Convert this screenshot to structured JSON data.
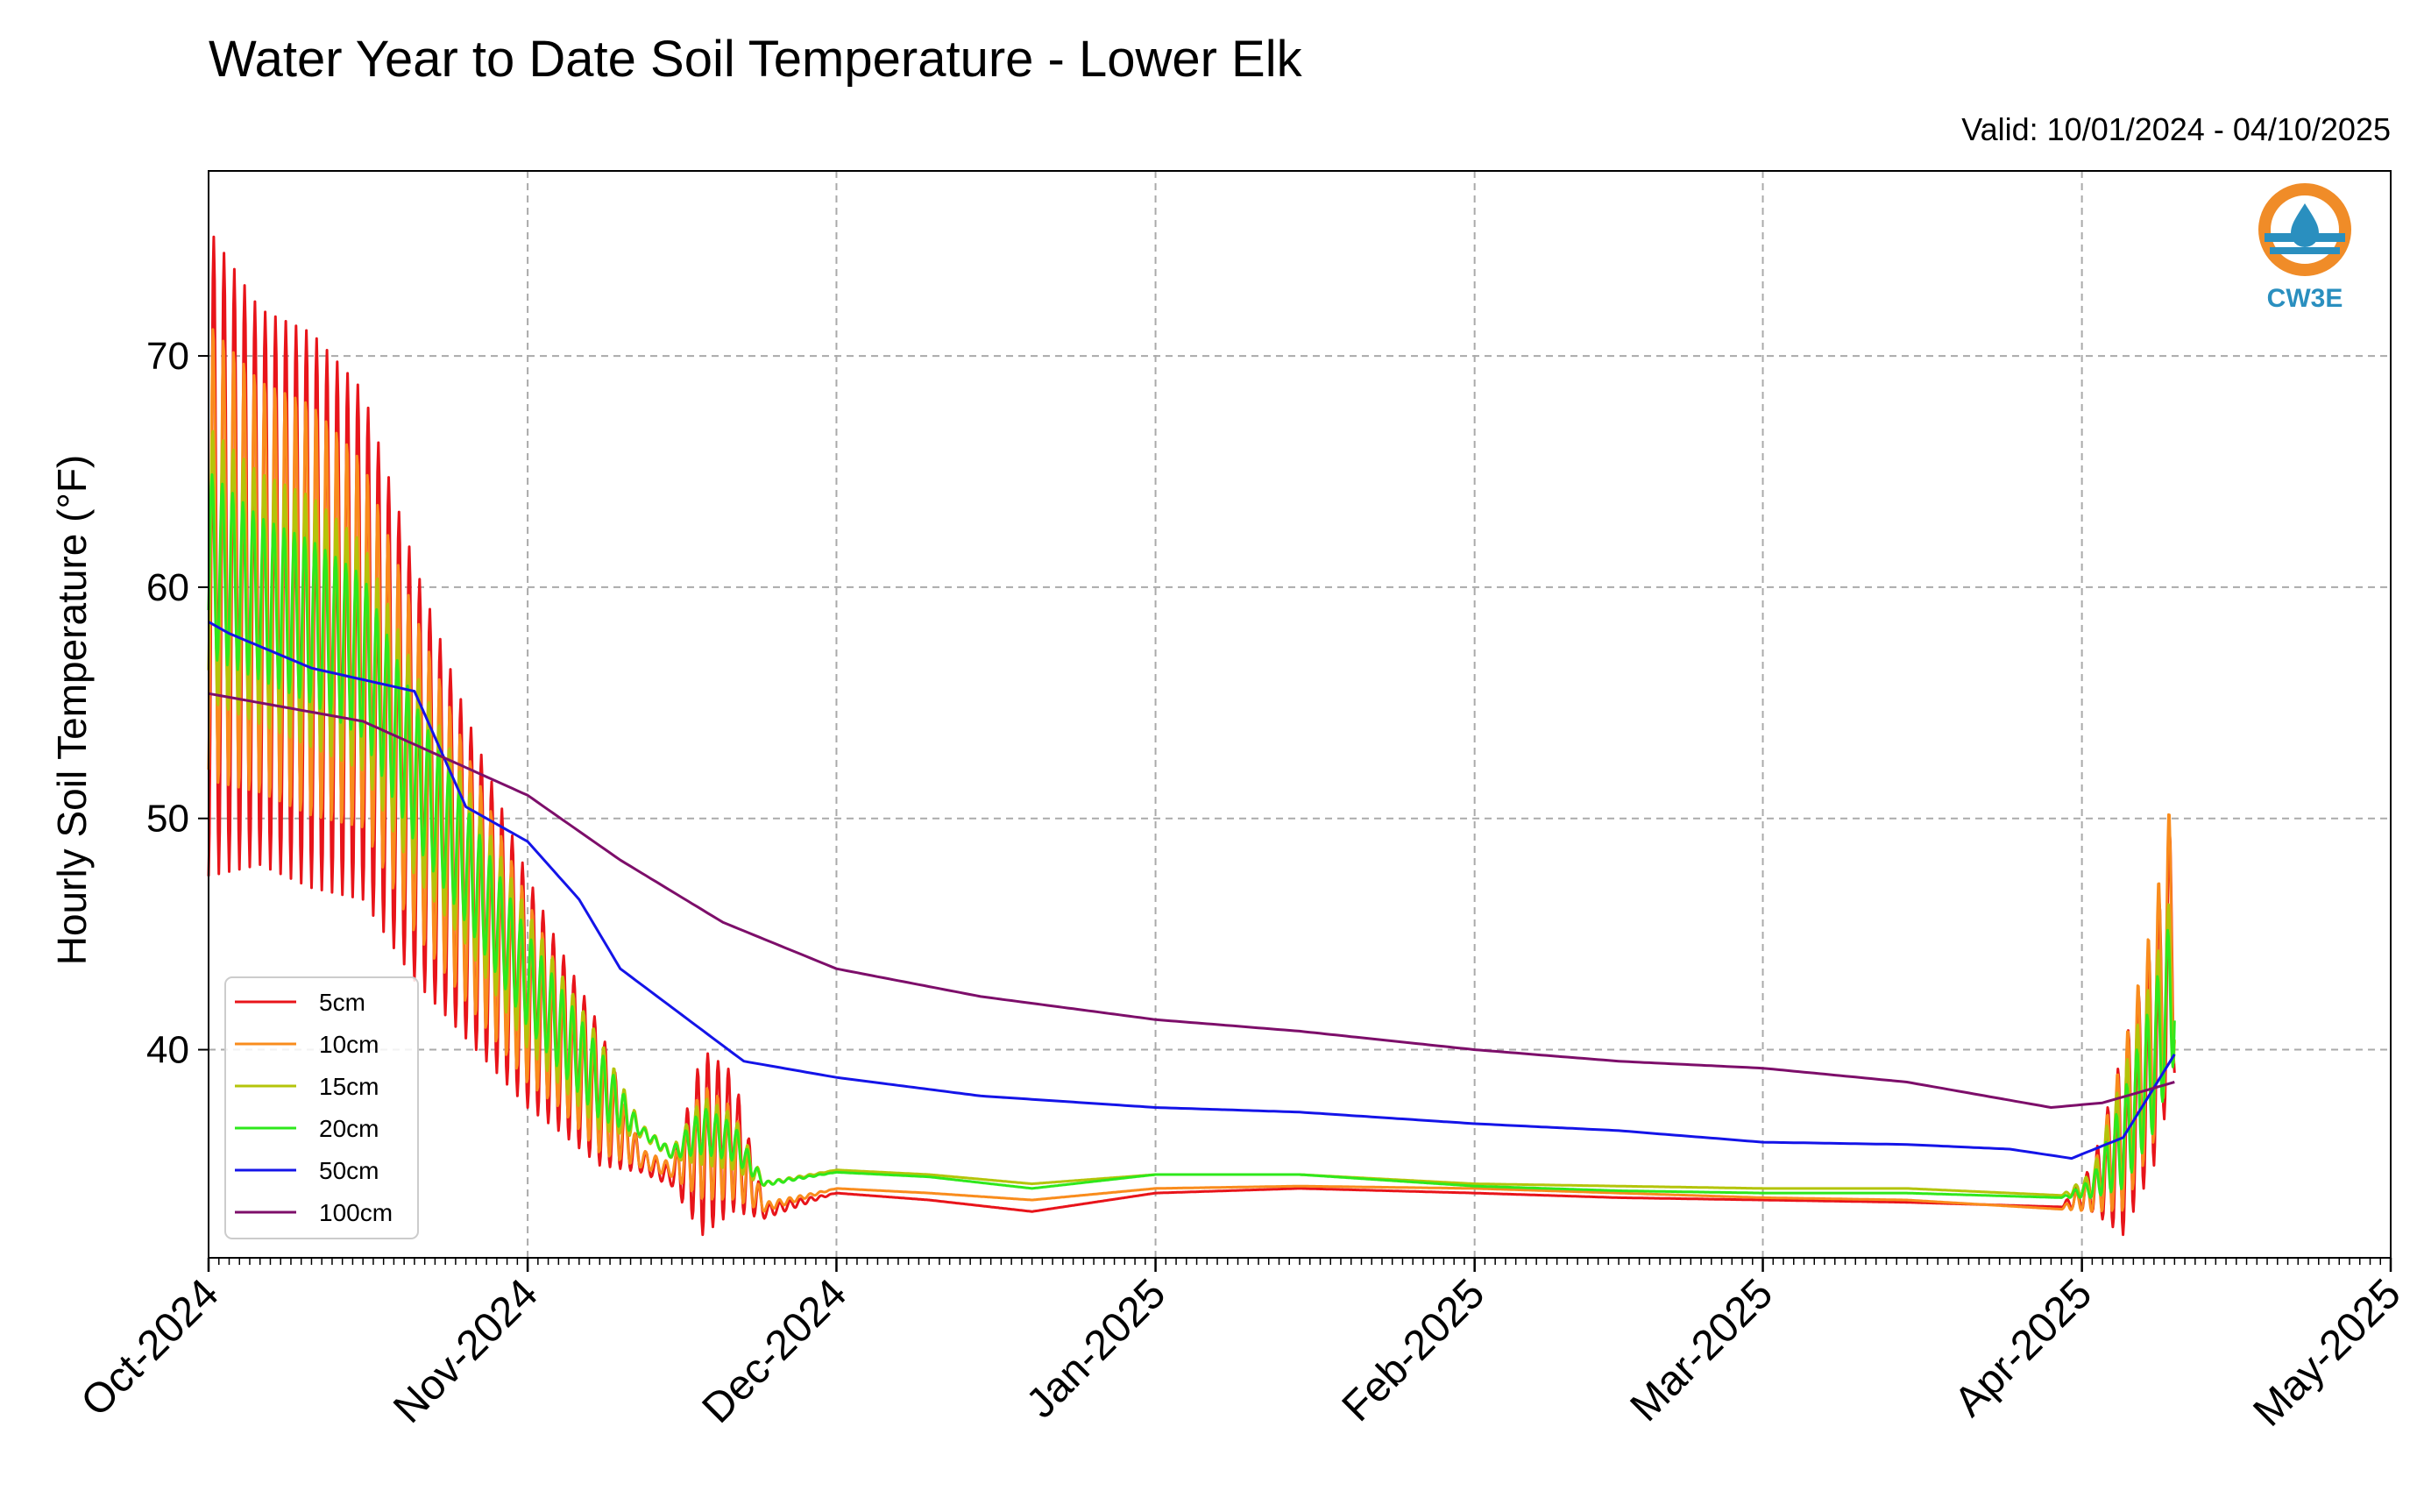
{
  "chart_data": {
    "type": "line",
    "title": "Water Year to Date Soil Temperature - Lower Elk",
    "subtitle": "Valid: 10/01/2024 - 04/10/2025",
    "xlabel": "",
    "ylabel": "Hourly Soil Temperature (°F)",
    "x_range": [
      "2024-10-01",
      "2025-05-01"
    ],
    "ylim": [
      31,
      78
    ],
    "yticks": [
      40,
      50,
      60,
      70
    ],
    "ytick_labels": [
      "40",
      "50",
      "60",
      "70"
    ],
    "xticks": [
      "2024-10-01",
      "2024-11-01",
      "2024-12-01",
      "2025-01-01",
      "2025-02-01",
      "2025-03-01",
      "2025-04-01",
      "2025-05-01"
    ],
    "xtick_labels": [
      "Oct-2024",
      "Nov-2024",
      "Dec-2024",
      "Jan-2025",
      "Feb-2025",
      "Mar-2025",
      "Apr-2025",
      "May-2025"
    ],
    "grid": true,
    "legend_position": "lower-left",
    "series": [
      {
        "name": "5cm",
        "color": "#e8141a",
        "x": [
          "2024-10-01",
          "2024-10-06",
          "2024-10-11",
          "2024-10-16",
          "2024-10-21",
          "2024-10-26",
          "2024-11-01",
          "2024-11-04",
          "2024-11-08",
          "2024-11-12",
          "2024-11-15",
          "2024-11-18",
          "2024-11-21",
          "2024-11-24",
          "2024-12-01",
          "2024-12-10",
          "2024-12-20",
          "2025-01-01",
          "2025-01-15",
          "2025-02-01",
          "2025-02-15",
          "2025-03-01",
          "2025-03-15",
          "2025-03-30",
          "2025-04-02",
          "2025-04-05",
          "2025-04-08",
          "2025-04-10"
        ],
        "values": [
          61.5,
          60.0,
          59.0,
          57.5,
          52.0,
          47.5,
          42.5,
          40.5,
          38.0,
          35.2,
          34.5,
          36.0,
          36.0,
          33.0,
          33.8,
          33.5,
          33.0,
          33.8,
          34.0,
          33.8,
          33.6,
          33.5,
          33.4,
          33.2,
          34.0,
          36.0,
          40.0,
          45.0
        ],
        "amplitude": [
          14,
          12,
          12,
          11,
          9,
          7,
          5,
          4,
          3,
          0.5,
          0.4,
          4,
          3,
          0.3,
          0,
          0,
          0,
          0,
          0,
          0,
          0,
          0,
          0,
          0,
          1,
          4,
          5,
          6
        ]
      },
      {
        "name": "10cm",
        "color": "#f98c1d",
        "x": [
          "2024-10-01",
          "2024-10-06",
          "2024-10-11",
          "2024-10-16",
          "2024-10-21",
          "2024-10-26",
          "2024-11-01",
          "2024-11-04",
          "2024-11-08",
          "2024-11-12",
          "2024-11-15",
          "2024-11-18",
          "2024-11-21",
          "2024-11-24",
          "2024-12-01",
          "2024-12-10",
          "2024-12-20",
          "2025-01-01",
          "2025-01-15",
          "2025-02-01",
          "2025-02-15",
          "2025-03-01",
          "2025-03-15",
          "2025-03-30",
          "2025-04-02",
          "2025-04-05",
          "2025-04-08",
          "2025-04-10"
        ],
        "values": [
          61.5,
          60.0,
          59.0,
          57.5,
          52.0,
          47.5,
          42.5,
          40.5,
          38.0,
          35.3,
          34.8,
          36.0,
          35.5,
          33.2,
          34.0,
          33.8,
          33.5,
          34.0,
          34.1,
          34.0,
          33.8,
          33.6,
          33.5,
          33.1,
          33.8,
          36.5,
          41.0,
          46.0
        ],
        "amplitude": [
          10,
          9,
          9,
          8,
          7,
          5.5,
          4,
          3,
          2.5,
          0.4,
          0.3,
          2.5,
          2,
          0.2,
          0,
          0,
          0,
          0,
          0,
          0,
          0,
          0,
          0,
          0,
          0.8,
          3.5,
          5,
          6
        ]
      },
      {
        "name": "15cm",
        "color": "#b4c40a",
        "x": [
          "2024-10-01",
          "2024-10-06",
          "2024-10-11",
          "2024-10-16",
          "2024-10-21",
          "2024-10-26",
          "2024-11-01",
          "2024-11-04",
          "2024-11-08",
          "2024-11-12",
          "2024-11-15",
          "2024-11-18",
          "2024-11-21",
          "2024-11-24",
          "2024-12-01",
          "2024-12-10",
          "2024-12-20",
          "2025-01-01",
          "2025-01-15",
          "2025-02-01",
          "2025-02-15",
          "2025-03-01",
          "2025-03-15",
          "2025-03-30",
          "2025-04-02",
          "2025-04-05",
          "2025-04-08",
          "2025-04-10"
        ],
        "values": [
          61.0,
          59.5,
          58.5,
          57.0,
          52.0,
          48.0,
          43.0,
          41.0,
          38.5,
          36.5,
          35.5,
          36.5,
          36.0,
          34.2,
          34.8,
          34.6,
          34.2,
          34.6,
          34.6,
          34.2,
          34.1,
          34.0,
          34.0,
          33.7,
          34.2,
          36.5,
          40.0,
          43.5
        ],
        "amplitude": [
          6,
          5.5,
          5.5,
          5,
          4.5,
          3.5,
          3,
          2.5,
          2,
          0.3,
          0.2,
          1.5,
          1.2,
          0.1,
          0,
          0,
          0,
          0,
          0,
          0,
          0,
          0,
          0,
          0,
          0.5,
          2.5,
          3.5,
          4
        ]
      },
      {
        "name": "20cm",
        "color": "#2ee81c",
        "x": [
          "2024-10-01",
          "2024-10-06",
          "2024-10-11",
          "2024-10-16",
          "2024-10-21",
          "2024-10-26",
          "2024-11-01",
          "2024-11-04",
          "2024-11-08",
          "2024-11-12",
          "2024-11-15",
          "2024-11-18",
          "2024-11-21",
          "2024-11-24",
          "2024-12-01",
          "2024-12-10",
          "2024-12-20",
          "2025-01-01",
          "2025-01-15",
          "2025-02-01",
          "2025-02-15",
          "2025-03-01",
          "2025-03-15",
          "2025-03-30",
          "2025-04-02",
          "2025-04-05",
          "2025-04-08",
          "2025-04-10"
        ],
        "values": [
          61.0,
          59.5,
          58.5,
          57.0,
          52.0,
          48.0,
          43.0,
          41.0,
          38.5,
          36.5,
          35.5,
          36.5,
          36.0,
          34.2,
          34.7,
          34.5,
          34.0,
          34.6,
          34.6,
          34.1,
          33.9,
          33.8,
          33.8,
          33.6,
          34.0,
          36.0,
          39.5,
          43.0
        ],
        "amplitude": [
          4,
          3.5,
          3.5,
          3.5,
          3,
          2.5,
          2,
          1.8,
          1.5,
          0.2,
          0.2,
          1,
          0.8,
          0.1,
          0,
          0,
          0,
          0,
          0,
          0,
          0,
          0,
          0,
          0,
          0.4,
          2,
          3,
          3.5
        ]
      },
      {
        "name": "50cm",
        "color": "#1414e8",
        "x": [
          "2024-10-01",
          "2024-10-03",
          "2024-10-11",
          "2024-10-21",
          "2024-10-26",
          "2024-11-01",
          "2024-11-06",
          "2024-11-10",
          "2024-11-16",
          "2024-11-22",
          "2024-12-01",
          "2024-12-15",
          "2025-01-01",
          "2025-01-15",
          "2025-02-01",
          "2025-02-15",
          "2025-03-01",
          "2025-03-15",
          "2025-03-25",
          "2025-03-31",
          "2025-04-05",
          "2025-04-10"
        ],
        "values": [
          58.5,
          58.0,
          56.5,
          55.5,
          50.5,
          49.0,
          46.5,
          43.5,
          41.5,
          39.5,
          38.8,
          38.0,
          37.5,
          37.3,
          36.8,
          36.5,
          36.0,
          35.9,
          35.7,
          35.3,
          36.2,
          39.8
        ]
      },
      {
        "name": "100cm",
        "color": "#7d0e6a",
        "x": [
          "2024-10-01",
          "2024-10-16",
          "2024-10-22",
          "2024-11-01",
          "2024-11-10",
          "2024-11-20",
          "2024-12-01",
          "2024-12-15",
          "2025-01-01",
          "2025-01-15",
          "2025-02-01",
          "2025-02-15",
          "2025-03-01",
          "2025-03-15",
          "2025-03-29",
          "2025-04-03",
          "2025-04-10"
        ],
        "values": [
          55.4,
          54.2,
          53.0,
          51.0,
          48.2,
          45.5,
          43.5,
          42.3,
          41.3,
          40.8,
          40.0,
          39.5,
          39.2,
          38.6,
          37.5,
          37.7,
          38.6
        ]
      }
    ]
  },
  "logo": {
    "text": "CW3E",
    "ring_color": "#f08c28",
    "drop_color": "#2a8fbf",
    "wave_color": "#2a8fbf"
  }
}
